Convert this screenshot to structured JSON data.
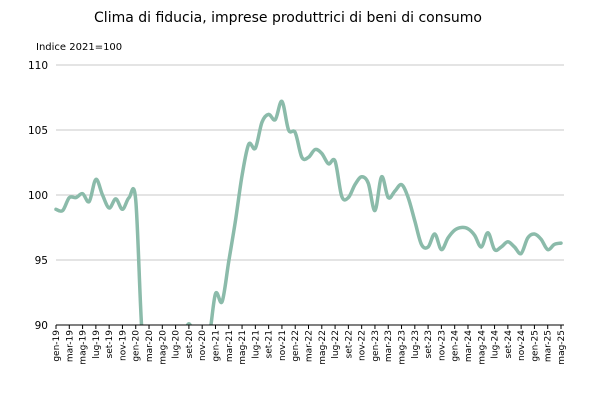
{
  "chart_data": {
    "type": "line",
    "title": "Clima di fiducia, imprese produttrici di beni di consumo",
    "ylabel": "Indice 2021=100",
    "xlabel": "",
    "ylim": [
      90,
      110
    ],
    "yticks": [
      90,
      95,
      100,
      105,
      110
    ],
    "grid": true,
    "legend": "none",
    "colors": {
      "series": "#8bbbaa",
      "grid": "#c8c8c8",
      "axis": "#000000"
    },
    "x": [
      "gen-19",
      "feb-19",
      "mar-19",
      "apr-19",
      "mag-19",
      "giu-19",
      "lug-19",
      "ago-19",
      "set-19",
      "ott-19",
      "nov-19",
      "dic-19",
      "gen-20",
      "feb-20",
      "mar-20",
      "apr-20",
      "mag-20",
      "giu-20",
      "lug-20",
      "ago-20",
      "set-20",
      "ott-20",
      "nov-20",
      "dic-20",
      "gen-21",
      "feb-21",
      "mar-21",
      "apr-21",
      "mag-21",
      "giu-21",
      "lug-21",
      "ago-21",
      "set-21",
      "ott-21",
      "nov-21",
      "dic-21",
      "gen-22",
      "feb-22",
      "mar-22",
      "apr-22",
      "mag-22",
      "giu-22",
      "lug-22",
      "ago-22",
      "set-22",
      "ott-22",
      "nov-22",
      "dic-22",
      "gen-23",
      "feb-23",
      "mar-23",
      "apr-23",
      "mag-23",
      "giu-23",
      "lug-23",
      "ago-23",
      "set-23",
      "ott-23",
      "nov-23",
      "dic-23",
      "gen-24",
      "feb-24",
      "mar-24",
      "apr-24",
      "mag-24",
      "giu-24",
      "lug-24",
      "ago-24",
      "set-24",
      "ott-24",
      "nov-24",
      "dic-24",
      "gen-25",
      "feb-25",
      "mar-25",
      "apr-25",
      "mag-25"
    ],
    "xtick_labels": [
      "gen-19",
      "mar-19",
      "mag-19",
      "lug-19",
      "set-19",
      "nov-19",
      "gen-20",
      "mar-20",
      "mag-20",
      "lug-20",
      "set-20",
      "nov-20",
      "gen-21",
      "mar-21",
      "mag-21",
      "lug-21",
      "set-21",
      "nov-21",
      "gen-22",
      "mar-22",
      "mag-22",
      "lug-22",
      "set-22",
      "nov-22",
      "gen-23",
      "mar-23",
      "mag-23",
      "lug-23",
      "set-23",
      "nov-23",
      "gen-24",
      "mar-24",
      "mag-24",
      "lug-24",
      "set-24",
      "nov-24",
      "gen-25",
      "mar-25",
      "mag-25"
    ],
    "series": [
      {
        "name": "",
        "values": [
          98.9,
          98.8,
          99.8,
          99.8,
          100.1,
          99.5,
          101.2,
          100.0,
          99.0,
          99.7,
          98.9,
          99.8,
          99.6,
          89.0,
          89.0,
          89.0,
          89.0,
          89.0,
          89.0,
          89.0,
          90.1,
          89.0,
          89.0,
          89.0,
          92.4,
          91.8,
          94.9,
          98.0,
          101.5,
          103.9,
          103.6,
          105.6,
          106.2,
          105.8,
          107.2,
          105.0,
          104.8,
          102.9,
          102.9,
          103.5,
          103.2,
          102.4,
          102.6,
          99.9,
          99.8,
          100.8,
          101.4,
          100.9,
          98.8,
          101.4,
          99.8,
          100.3,
          100.8,
          99.8,
          98.0,
          96.2,
          96.0,
          97.0,
          95.8,
          96.7,
          97.3,
          97.5,
          97.4,
          96.9,
          96.0,
          97.1,
          95.8,
          96.0,
          96.4,
          96.0,
          95.5,
          96.7,
          97.0,
          96.6,
          95.8,
          96.2,
          96.3
        ]
      }
    ]
  }
}
